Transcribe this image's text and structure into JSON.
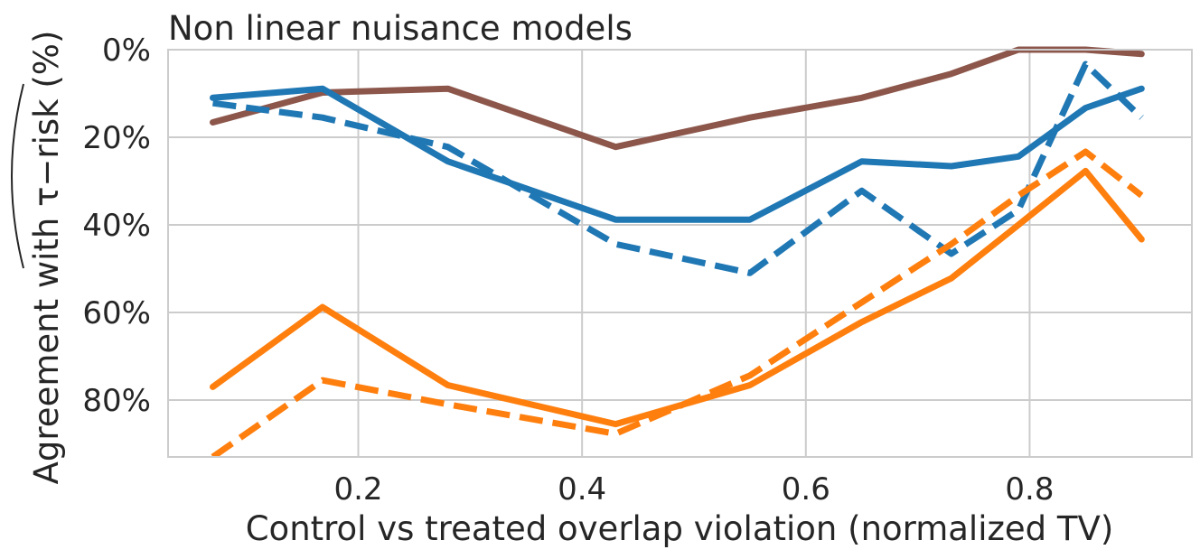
{
  "chart_data": {
    "type": "line",
    "title": "Non linear nuisance models",
    "xlabel": "Control vs treated overlap violation (normalized TV)",
    "ylabel": "Agreement with τ−risk (%)",
    "ylabel_hat_text": "τ−risk",
    "xlim": [
      0.03,
      0.945
    ],
    "ylim": [
      93,
      0
    ],
    "y_inverted": true,
    "grid": true,
    "legend": "none",
    "xticks": [
      0.2,
      0.4,
      0.6,
      0.8
    ],
    "xtick_labels": [
      "0.2",
      "0.4",
      "0.6",
      "0.8"
    ],
    "yticks": [
      0,
      20,
      40,
      60,
      80
    ],
    "ytick_labels": [
      "0%",
      "20%",
      "40%",
      "60%",
      "80%"
    ],
    "x": [
      0.07,
      0.168,
      0.28,
      0.43,
      0.55,
      0.65,
      0.73,
      0.79,
      0.85,
      0.9
    ],
    "series": [
      {
        "color": "#8c564b",
        "style": "solid",
        "values": [
          16.6,
          9.8,
          8.9,
          22.2,
          15.5,
          11.0,
          5.5,
          0.0,
          0.0,
          1.0
        ]
      },
      {
        "color": "#1f77b4",
        "style": "solid",
        "values": [
          11.0,
          8.9,
          25.5,
          38.8,
          38.8,
          25.5,
          26.6,
          24.4,
          13.3,
          8.9
        ]
      },
      {
        "color": "#1f77b4",
        "style": "dashed",
        "values": [
          12.2,
          15.5,
          22.2,
          44.4,
          51.0,
          32.2,
          46.6,
          36.6,
          3.3,
          15.5
        ]
      },
      {
        "color": "#ff7f0e",
        "style": "solid",
        "values": [
          77.0,
          58.8,
          76.6,
          85.5,
          76.6,
          62.2,
          52.2,
          40.0,
          27.7,
          43.3
        ]
      },
      {
        "color": "#ff7f0e",
        "style": "dashed",
        "values": [
          93.0,
          75.5,
          81.0,
          87.7,
          74.4,
          57.7,
          44.4,
          33.3,
          23.3,
          33.3
        ]
      }
    ]
  }
}
